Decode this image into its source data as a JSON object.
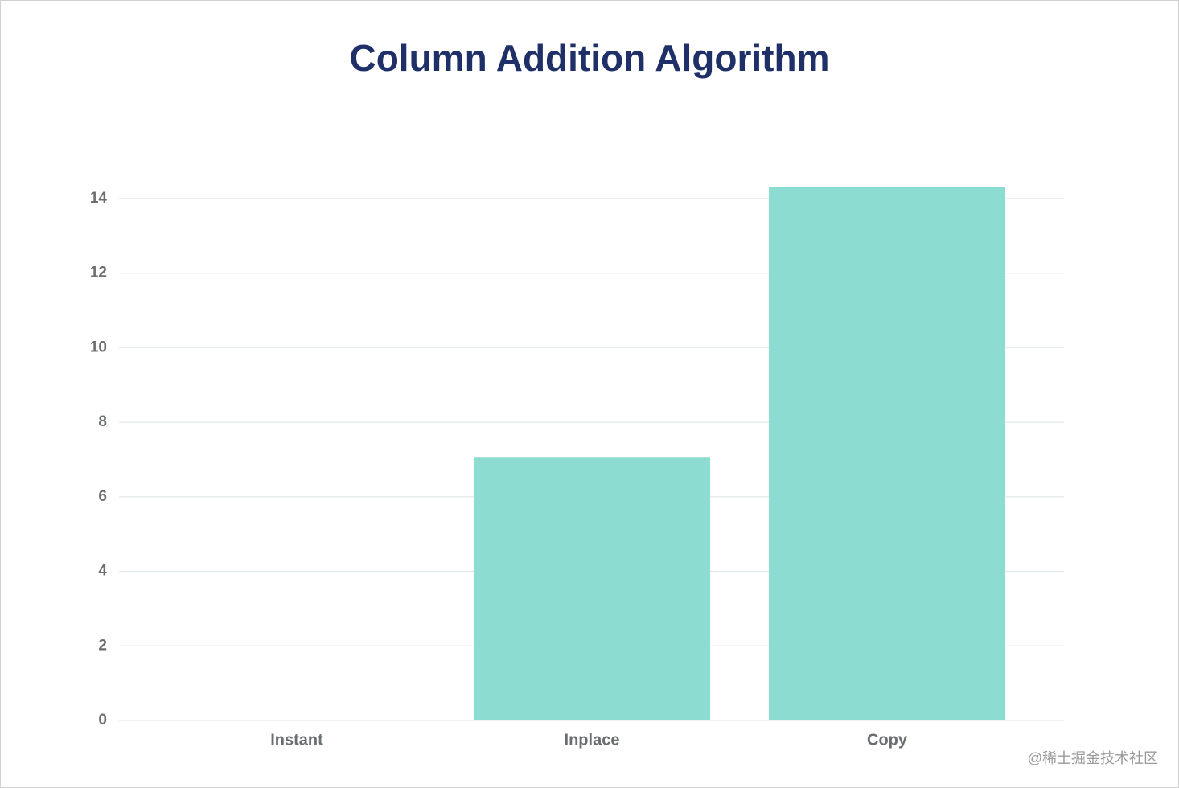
{
  "chart_data": {
    "type": "bar",
    "title": "Column Addition Algorithm",
    "categories": [
      "Instant",
      "Inplace",
      "Copy"
    ],
    "values": [
      0.02,
      7.07,
      14.32
    ],
    "color": "#8ddcd2",
    "ylim": [
      0,
      15
    ],
    "yticks": [
      0,
      2,
      4,
      6,
      8,
      10,
      12,
      14
    ],
    "grid": true
  },
  "watermark": "@稀土掘金技术社区"
}
